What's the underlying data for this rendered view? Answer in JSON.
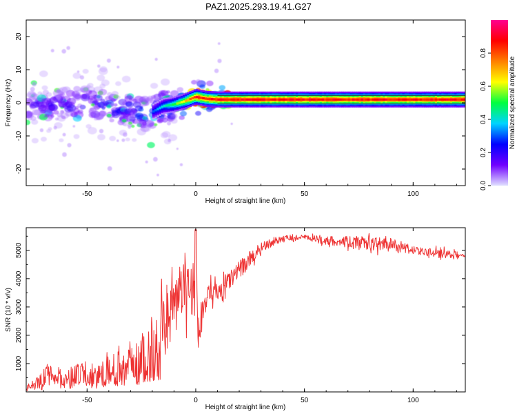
{
  "figure": {
    "title": "PAZ1.2025.293.19.41.G27"
  },
  "chart_data": [
    {
      "type": "heatmap",
      "name": "spectrogram",
      "title": "PAZ1.2025.293.19.41.G27",
      "xlabel": "Height of straight line (km)",
      "ylabel": "Frequency (Hz)",
      "xlim": [
        -78,
        124
      ],
      "ylim": [
        -25,
        25
      ],
      "xticks": [
        -50,
        0,
        50,
        100
      ],
      "yticks": [
        -20,
        -10,
        0,
        10,
        20
      ],
      "grid": false,
      "colorbar": {
        "label": "Normalized spectral amplitude",
        "range": [
          0,
          1
        ],
        "ticks": [
          0.0,
          0.2,
          0.4,
          0.6,
          0.8
        ],
        "tick_labels": [
          "0.0",
          "0.2",
          "0.4",
          "0.6",
          "0.8"
        ],
        "colormap": [
          "#e0e0ff",
          "#7000ff",
          "#0000ff",
          "#00d4ff",
          "#00ff40",
          "#ffff00",
          "#ff8000",
          "#ff0000",
          "#ff0090"
        ]
      },
      "signal_track": [
        {
          "x": -78,
          "f": -2.0
        },
        {
          "x": -70,
          "f": -1.0
        },
        {
          "x": -60,
          "f": -0.5
        },
        {
          "x": -50,
          "f": 0.0
        },
        {
          "x": -40,
          "f": -1.0
        },
        {
          "x": -30,
          "f": -2.5
        },
        {
          "x": -22,
          "f": -3.5
        },
        {
          "x": -15,
          "f": -1.0
        },
        {
          "x": -10,
          "f": -0.5
        },
        {
          "x": -5,
          "f": 0.5
        },
        {
          "x": 0,
          "f": 1.8
        },
        {
          "x": 5,
          "f": 1.2
        },
        {
          "x": 10,
          "f": 1.0
        },
        {
          "x": 50,
          "f": 1.0
        },
        {
          "x": 100,
          "f": 1.0
        },
        {
          "x": 124,
          "f": 1.0
        }
      ],
      "amplitude_profile": [
        {
          "x": -78,
          "a": 0.15
        },
        {
          "x": -20,
          "a": 0.3
        },
        {
          "x": -10,
          "a": 0.55
        },
        {
          "x": 0,
          "a": 0.9
        },
        {
          "x": 10,
          "a": 0.95
        },
        {
          "x": 124,
          "a": 0.95
        }
      ]
    },
    {
      "type": "line",
      "name": "snr",
      "xlabel": "Height of straight line (km)",
      "ylabel": "SNR (10 * v/v)",
      "xlim": [
        -78,
        124
      ],
      "ylim": [
        0,
        5800
      ],
      "xticks": [
        -50,
        0,
        50,
        100
      ],
      "yticks": [
        1000,
        2000,
        3000,
        4000,
        5000
      ],
      "grid": false,
      "color": "#ee3333",
      "series": [
        {
          "name": "SNR",
          "x": [
            -78,
            -74,
            -71,
            -68,
            -66,
            -60,
            -52,
            -45,
            -40,
            -35,
            -30,
            -25,
            -22,
            -20,
            -17,
            -15,
            -12,
            -10,
            -8,
            -5,
            -3,
            -1,
            0,
            1,
            2,
            4,
            6,
            10,
            15,
            20,
            25,
            30,
            35,
            40,
            45,
            50,
            55,
            60,
            70,
            80,
            90,
            95,
            100,
            110,
            124
          ],
          "values": [
            200,
            300,
            350,
            800,
            600,
            500,
            700,
            600,
            800,
            900,
            1100,
            1300,
            1400,
            1700,
            1900,
            2200,
            2500,
            3000,
            3300,
            3600,
            3500,
            3800,
            4200,
            1800,
            2600,
            3000,
            3300,
            3500,
            3900,
            4300,
            4700,
            5100,
            5300,
            5400,
            5450,
            5450,
            5400,
            5350,
            5300,
            5250,
            5200,
            5100,
            5000,
            4900,
            4800
          ],
          "noise_amplitude": [
            150,
            200,
            400,
            500,
            300,
            400,
            500,
            500,
            600,
            700,
            800,
            900,
            1200,
            1400,
            1500,
            1500,
            1300,
            1300,
            1300,
            1300,
            1100,
            1300,
            1500,
            500,
            900,
            700,
            600,
            500,
            450,
            400,
            350,
            250,
            200,
            150,
            150,
            120,
            150,
            200,
            250,
            300,
            300,
            250,
            200,
            200,
            150
          ]
        }
      ]
    }
  ]
}
